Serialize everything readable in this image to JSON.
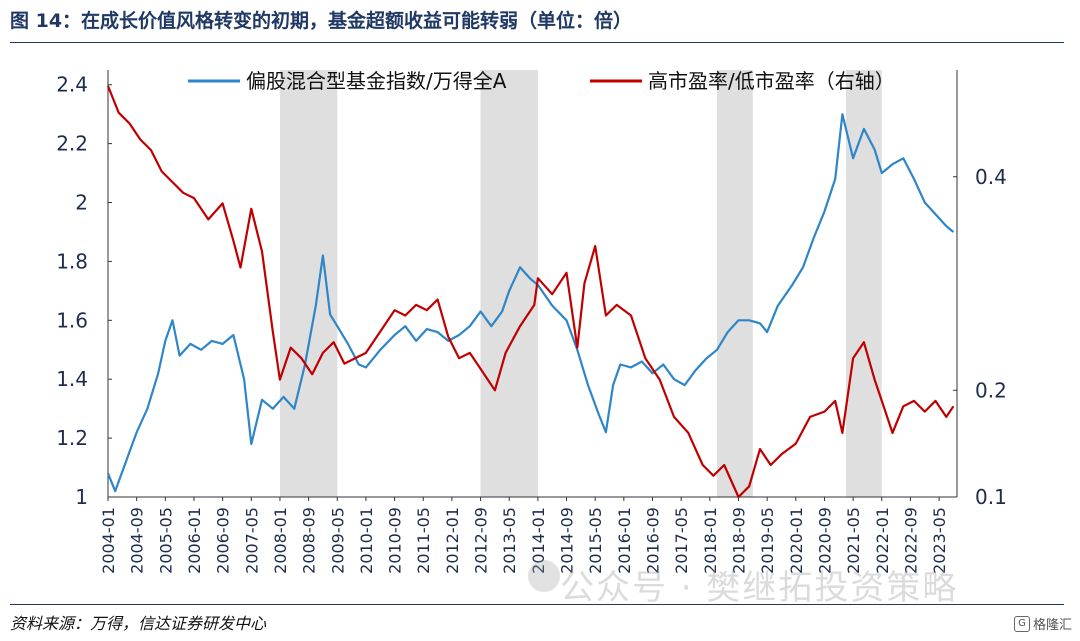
{
  "header": {
    "title": "图 14：在成长价值风格转变的初期，基金超额收益可能转弱（单位：倍）"
  },
  "footer": {
    "source": "资料来源：万得，信达证券研发中心",
    "watermark": "公众号 · 樊继拓投资策略",
    "badge": "格隆汇"
  },
  "chart_data": {
    "type": "line",
    "title": "",
    "xlabel": "",
    "ylabel": "",
    "y_left_lim": [
      1,
      2.45
    ],
    "y_left_ticks": [
      "1",
      "1.2",
      "1.4",
      "1.6",
      "1.8",
      "2",
      "2.2",
      "2.4"
    ],
    "y_right_lim": [
      0.1,
      0.5
    ],
    "y_right_ticks": [
      "0.1",
      "0.2",
      "0.4"
    ],
    "x_ticks": [
      "2004-01",
      "2004-09",
      "2005-05",
      "2006-01",
      "2006-09",
      "2007-05",
      "2008-01",
      "2008-09",
      "2009-05",
      "2010-01",
      "2010-09",
      "2011-05",
      "2012-01",
      "2012-09",
      "2013-05",
      "2014-01",
      "2014-09",
      "2015-05",
      "2016-01",
      "2016-09",
      "2017-05",
      "2018-01",
      "2018-09",
      "2019-05",
      "2020-01",
      "2020-09",
      "2021-05",
      "2022-01",
      "2022-09",
      "2023-05"
    ],
    "legend_position": "top",
    "shaded_periods": [
      [
        "2008-01",
        "2009-05"
      ],
      [
        "2012-09",
        "2014-01"
      ],
      [
        "2018-03",
        "2019-01"
      ],
      [
        "2021-03",
        "2022-01"
      ]
    ],
    "shade_color": "#d9d9d9",
    "series": [
      {
        "name": "偏股混合型基金指数/万得全A",
        "axis": "left",
        "color": "#2e86c8",
        "points": [
          [
            "2004-01",
            1.08
          ],
          [
            "2004-03",
            1.02
          ],
          [
            "2004-06",
            1.12
          ],
          [
            "2004-09",
            1.22
          ],
          [
            "2004-12",
            1.3
          ],
          [
            "2005-03",
            1.42
          ],
          [
            "2005-05",
            1.53
          ],
          [
            "2005-07",
            1.6
          ],
          [
            "2005-09",
            1.48
          ],
          [
            "2005-12",
            1.52
          ],
          [
            "2006-03",
            1.5
          ],
          [
            "2006-06",
            1.53
          ],
          [
            "2006-09",
            1.52
          ],
          [
            "2006-12",
            1.55
          ],
          [
            "2007-03",
            1.4
          ],
          [
            "2007-05",
            1.18
          ],
          [
            "2007-08",
            1.33
          ],
          [
            "2007-11",
            1.3
          ],
          [
            "2008-02",
            1.34
          ],
          [
            "2008-05",
            1.3
          ],
          [
            "2008-08",
            1.45
          ],
          [
            "2008-11",
            1.65
          ],
          [
            "2009-01",
            1.82
          ],
          [
            "2009-03",
            1.62
          ],
          [
            "2009-05",
            1.58
          ],
          [
            "2009-08",
            1.52
          ],
          [
            "2009-11",
            1.45
          ],
          [
            "2010-01",
            1.44
          ],
          [
            "2010-05",
            1.5
          ],
          [
            "2010-09",
            1.55
          ],
          [
            "2010-12",
            1.58
          ],
          [
            "2011-03",
            1.53
          ],
          [
            "2011-06",
            1.57
          ],
          [
            "2011-09",
            1.56
          ],
          [
            "2011-12",
            1.53
          ],
          [
            "2012-03",
            1.55
          ],
          [
            "2012-06",
            1.58
          ],
          [
            "2012-09",
            1.63
          ],
          [
            "2012-12",
            1.58
          ],
          [
            "2013-03",
            1.63
          ],
          [
            "2013-05",
            1.7
          ],
          [
            "2013-08",
            1.78
          ],
          [
            "2013-11",
            1.74
          ],
          [
            "2014-01",
            1.72
          ],
          [
            "2014-05",
            1.65
          ],
          [
            "2014-09",
            1.6
          ],
          [
            "2014-12",
            1.5
          ],
          [
            "2015-03",
            1.38
          ],
          [
            "2015-06",
            1.28
          ],
          [
            "2015-08",
            1.22
          ],
          [
            "2015-10",
            1.38
          ],
          [
            "2015-12",
            1.45
          ],
          [
            "2016-03",
            1.44
          ],
          [
            "2016-06",
            1.46
          ],
          [
            "2016-09",
            1.42
          ],
          [
            "2016-12",
            1.45
          ],
          [
            "2017-03",
            1.4
          ],
          [
            "2017-06",
            1.38
          ],
          [
            "2017-09",
            1.43
          ],
          [
            "2017-12",
            1.47
          ],
          [
            "2018-03",
            1.5
          ],
          [
            "2018-06",
            1.56
          ],
          [
            "2018-09",
            1.6
          ],
          [
            "2018-12",
            1.6
          ],
          [
            "2019-03",
            1.59
          ],
          [
            "2019-05",
            1.56
          ],
          [
            "2019-08",
            1.65
          ],
          [
            "2019-12",
            1.72
          ],
          [
            "2020-03",
            1.78
          ],
          [
            "2020-06",
            1.88
          ],
          [
            "2020-09",
            1.97
          ],
          [
            "2020-12",
            2.08
          ],
          [
            "2021-02",
            2.3
          ],
          [
            "2021-05",
            2.15
          ],
          [
            "2021-08",
            2.25
          ],
          [
            "2021-11",
            2.18
          ],
          [
            "2022-01",
            2.1
          ],
          [
            "2022-04",
            2.13
          ],
          [
            "2022-07",
            2.15
          ],
          [
            "2022-10",
            2.08
          ],
          [
            "2023-01",
            2.0
          ],
          [
            "2023-04",
            1.96
          ],
          [
            "2023-07",
            1.92
          ],
          [
            "2023-09",
            1.9
          ]
        ]
      },
      {
        "name": "高市盈率/低市盈率（右轴）",
        "axis": "right",
        "color": "#c00000",
        "points": [
          [
            "2004-01",
            0.485
          ],
          [
            "2004-04",
            0.46
          ],
          [
            "2004-07",
            0.45
          ],
          [
            "2004-10",
            0.435
          ],
          [
            "2005-01",
            0.425
          ],
          [
            "2005-04",
            0.405
          ],
          [
            "2005-07",
            0.395
          ],
          [
            "2005-10",
            0.385
          ],
          [
            "2006-01",
            0.38
          ],
          [
            "2006-05",
            0.36
          ],
          [
            "2006-09",
            0.375
          ],
          [
            "2006-12",
            0.34
          ],
          [
            "2007-02",
            0.315
          ],
          [
            "2007-05",
            0.37
          ],
          [
            "2007-08",
            0.33
          ],
          [
            "2007-11",
            0.255
          ],
          [
            "2008-01",
            0.21
          ],
          [
            "2008-04",
            0.24
          ],
          [
            "2008-07",
            0.23
          ],
          [
            "2008-10",
            0.215
          ],
          [
            "2009-01",
            0.235
          ],
          [
            "2009-04",
            0.245
          ],
          [
            "2009-07",
            0.225
          ],
          [
            "2010-01",
            0.235
          ],
          [
            "2010-05",
            0.255
          ],
          [
            "2010-09",
            0.275
          ],
          [
            "2010-12",
            0.27
          ],
          [
            "2011-03",
            0.28
          ],
          [
            "2011-06",
            0.275
          ],
          [
            "2011-09",
            0.285
          ],
          [
            "2011-12",
            0.25
          ],
          [
            "2012-03",
            0.23
          ],
          [
            "2012-06",
            0.235
          ],
          [
            "2012-09",
            0.22
          ],
          [
            "2013-01",
            0.2
          ],
          [
            "2013-04",
            0.235
          ],
          [
            "2013-08",
            0.26
          ],
          [
            "2013-12",
            0.28
          ],
          [
            "2014-01",
            0.305
          ],
          [
            "2014-05",
            0.29
          ],
          [
            "2014-09",
            0.31
          ],
          [
            "2014-12",
            0.24
          ],
          [
            "2015-02",
            0.3
          ],
          [
            "2015-05",
            0.335
          ],
          [
            "2015-08",
            0.27
          ],
          [
            "2015-11",
            0.28
          ],
          [
            "2016-03",
            0.27
          ],
          [
            "2016-07",
            0.23
          ],
          [
            "2016-11",
            0.21
          ],
          [
            "2017-03",
            0.175
          ],
          [
            "2017-07",
            0.16
          ],
          [
            "2017-11",
            0.13
          ],
          [
            "2018-02",
            0.12
          ],
          [
            "2018-05",
            0.13
          ],
          [
            "2018-09",
            0.1
          ],
          [
            "2018-12",
            0.11
          ],
          [
            "2019-03",
            0.145
          ],
          [
            "2019-06",
            0.13
          ],
          [
            "2019-09",
            0.14
          ],
          [
            "2020-01",
            0.15
          ],
          [
            "2020-05",
            0.175
          ],
          [
            "2020-09",
            0.18
          ],
          [
            "2020-12",
            0.19
          ],
          [
            "2021-02",
            0.16
          ],
          [
            "2021-05",
            0.23
          ],
          [
            "2021-08",
            0.245
          ],
          [
            "2021-11",
            0.21
          ],
          [
            "2022-01",
            0.19
          ],
          [
            "2022-04",
            0.16
          ],
          [
            "2022-07",
            0.185
          ],
          [
            "2022-10",
            0.19
          ],
          [
            "2023-01",
            0.18
          ],
          [
            "2023-04",
            0.19
          ],
          [
            "2023-07",
            0.175
          ],
          [
            "2023-09",
            0.185
          ]
        ]
      }
    ]
  }
}
